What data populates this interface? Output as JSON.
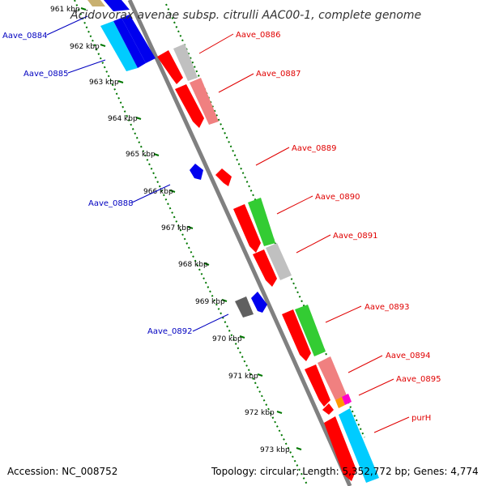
{
  "title": "Acidovorax avenae subsp. citrulli AAC00-1, complete genome",
  "footer": {
    "accession": "Accession: NC_008752",
    "summary": "Topology: circular; Length: 5,352,772 bp; Genes: 4,774"
  },
  "ticks": [
    "961 kbp",
    "962 kbp",
    "963 kbp",
    "964 kbp",
    "965 kbp",
    "966 kbp",
    "967 kbp",
    "968 kbp",
    "969 kbp",
    "970 kbp",
    "971 kbp",
    "972 kbp",
    "973 kbp"
  ],
  "labels": {
    "aave_0884": "Aave_0884",
    "aave_0885": "Aave_0885",
    "aave_0886": "Aave_0886",
    "aave_0887": "Aave_0887",
    "aave_0888": "Aave_0888",
    "aave_0889": "Aave_0889",
    "aave_0890": "Aave_0890",
    "aave_0891": "Aave_0891",
    "aave_0892": "Aave_0892",
    "aave_0893": "Aave_0893",
    "aave_0894": "Aave_0894",
    "aave_0895": "Aave_0895",
    "purh": "purH"
  },
  "colors": {
    "red": "#ff0000",
    "salmon": "#f08080",
    "gray": "#c0c0c0",
    "green": "#33cc33",
    "blue": "#0000ee",
    "cyan": "#00ccff",
    "darkgray": "#707070",
    "orange": "#ff9900",
    "magenta": "#ff00cc",
    "backbone": "#808080",
    "dots": "#007700"
  }
}
